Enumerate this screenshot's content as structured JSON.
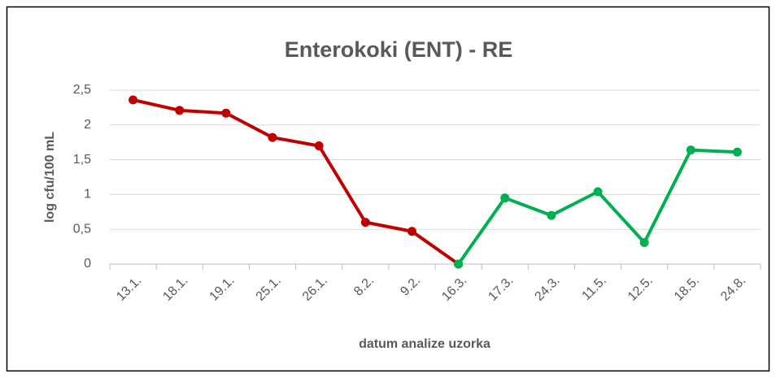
{
  "chart_data": {
    "type": "line",
    "title": "Enterokoki (ENT) - RE",
    "y_label": "log cfu/100 mL",
    "x_label": "datum analize uzorka",
    "categories": [
      "13.1.",
      "18.1.",
      "19.1.",
      "25.1.",
      "26.1.",
      "8.2.",
      "9.2.",
      "16.3.",
      "17.3.",
      "24.3.",
      "11.5.",
      "12.5.",
      "18.5.",
      "24.8."
    ],
    "series": [
      {
        "color": "#c00000",
        "values": [
          2.36,
          2.21,
          2.17,
          1.82,
          1.7,
          0.6,
          0.47,
          0,
          null,
          null,
          null,
          null,
          null,
          null
        ]
      },
      {
        "color": "#00b050",
        "values": [
          null,
          null,
          null,
          null,
          null,
          null,
          null,
          0,
          0.95,
          0.7,
          1.04,
          0.31,
          1.64,
          1.61
        ]
      }
    ],
    "ylim": [
      0,
      2.5
    ],
    "yticks": [
      0,
      {
        "value": 0.5,
        "label": "0,5"
      },
      1,
      {
        "value": 1.5,
        "label": "1,5"
      },
      2,
      {
        "value": 2.5,
        "label": "2,5"
      }
    ],
    "grid": true
  }
}
